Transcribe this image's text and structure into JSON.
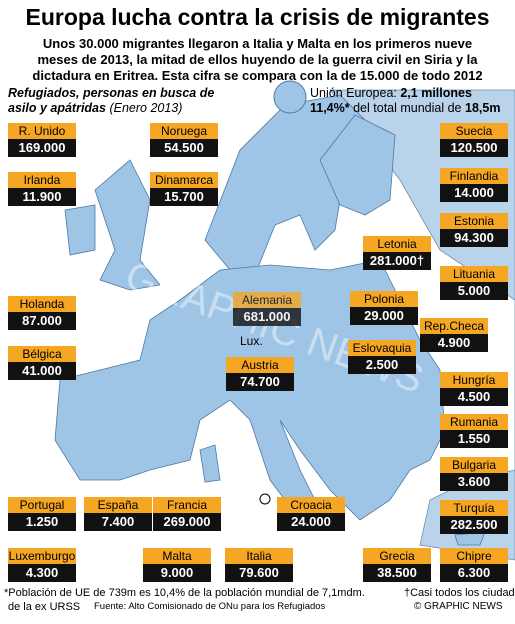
{
  "header": {
    "title": "Europa lucha contra la crisis de migrantes",
    "subtitle": [
      "Unos 30.000 migrantes llegaron a Italia y Malta en los primeros nueve",
      "meses de 2013, la mitad de ellos huyendo de la guerra civil en Siria y la",
      "dictadura en Eritrea. Esta cifra se compara con la de 15.000 de todo 2012"
    ]
  },
  "legend": {
    "heading": [
      "Refugiados, personas en busca de",
      "asilo y apátridas"
    ],
    "date": "(Enero 2013)",
    "eu_label": "Unión Europea:",
    "eu_value": "2,1 millones",
    "share": "11,4%*",
    "share_text": "del total mundial de",
    "world": "18,5m"
  },
  "countries": [
    {
      "name": "R. Unido",
      "value": "169.000"
    },
    {
      "name": "Noruega",
      "value": "54.500"
    },
    {
      "name": "Suecia",
      "value": "120.500"
    },
    {
      "name": "Irlanda",
      "value": "11.900"
    },
    {
      "name": "Dinamarca",
      "value": "15.700"
    },
    {
      "name": "Finlandia",
      "value": "14.000"
    },
    {
      "name": "Estonia",
      "value": "94.300"
    },
    {
      "name": "Letonia",
      "value": "281.000†"
    },
    {
      "name": "Lituania",
      "value": "5.000"
    },
    {
      "name": "Holanda",
      "value": "87.000"
    },
    {
      "name": "Alemania",
      "value": "681.000"
    },
    {
      "name": "Polonia",
      "value": "29.000"
    },
    {
      "name": "Rep.Checa",
      "value": "4.900"
    },
    {
      "name": "Bélgica",
      "value": "41.000"
    },
    {
      "name": "Eslovaquia",
      "value": "2.500"
    },
    {
      "name": "Austria",
      "value": "74.700"
    },
    {
      "name": "Hungría",
      "value": "4.500"
    },
    {
      "name": "Rumania",
      "value": "1.550"
    },
    {
      "name": "Bulgaria",
      "value": "3.600"
    },
    {
      "name": "Turquía",
      "value": "282.500"
    },
    {
      "name": "Portugal",
      "value": "1.250"
    },
    {
      "name": "España",
      "value": "7.400"
    },
    {
      "name": "Francia",
      "value": "269.000"
    },
    {
      "name": "Croacia",
      "value": "24.000"
    },
    {
      "name": "Luxemburgo",
      "value": "4.300"
    },
    {
      "name": "Malta",
      "value": "9.000"
    },
    {
      "name": "Italia",
      "value": "79.600"
    },
    {
      "name": "Grecia",
      "value": "38.500"
    },
    {
      "name": "Chipre",
      "value": "6.300"
    }
  ],
  "lux_label": "Lux.",
  "watermark": "GRAPHIC NEWS",
  "footer": {
    "note1": "*Población de UE de 739m es 10,4% de la población mundial de 7,1mdm.",
    "note1b": "de la ex URSS",
    "note2": "†Casi todos los ciudadanos",
    "source": "Fuente: Alto Comisionado de ONu para los Refugiados",
    "credit": "© GRAPHIC NEWS"
  }
}
